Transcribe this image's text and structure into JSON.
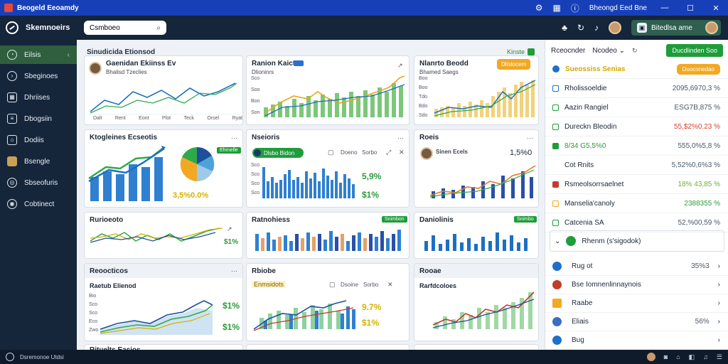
{
  "window": {
    "title": "Beogeld Eeoamdy"
  },
  "titlebar_right": {
    "label": "Bheongd Eed Bne"
  },
  "brand": {
    "name": "Skemnoeirs"
  },
  "search": {
    "value": "Csmboeo"
  },
  "profile": {
    "label": "Bitedlsa ame"
  },
  "sidebar": {
    "items": [
      {
        "label": "Eilsis",
        "icon": "gauge-icon",
        "active": true
      },
      {
        "label": "Sbeginoes",
        "icon": "chart-icon"
      },
      {
        "label": "Dhriises",
        "icon": "grid-icon"
      },
      {
        "label": "Dbogsiin",
        "icon": "document-icon"
      },
      {
        "label": "Dodiis",
        "icon": "home-icon"
      },
      {
        "label": "Bsengle",
        "icon": "book-icon"
      },
      {
        "label": "Sbseofuris",
        "icon": "people-icon"
      },
      {
        "label": "Cobtinect",
        "icon": "settings-icon"
      }
    ]
  },
  "main": {
    "header": "Sinudicida Etionsod",
    "header_action": "Kinste",
    "cards": {
      "c1": {
        "title": "Gaenidan Ekiinss Ev",
        "subtitle": "Bhalisd Tzeclies",
        "ticks": [
          "Dalt",
          "Rent",
          "Eont",
          "Plot",
          "Teck",
          "Orsel",
          "Ryat"
        ]
      },
      "c2": {
        "title": "Ranion Kaicts",
        "subtitle": "Dlioninrs",
        "y_ticks": [
          "Sco",
          "Soo",
          "Bon",
          "Son"
        ]
      },
      "c3": {
        "title": "Nlanrto Beodd",
        "subtitle": "Bhamed Saegs",
        "badge": "Dlistocem",
        "y_ticks": [
          "Boo",
          "Boo",
          "Tdo",
          "Bdo",
          "Sdo"
        ]
      },
      "c4": {
        "title": "Ktogleines Ecseotis",
        "badge": "Ehrnelle",
        "kpi": "3,5%0.0%"
      },
      "c5": {
        "title": "Nseioris",
        "pill": "Dlsbo Bidon",
        "action1": "Doeno",
        "action2": "Sorbo",
        "kpi1": "5,9%",
        "kpi2": "$1%",
        "y_ticks": [
          "Sco",
          "Sco",
          "Sco",
          "Sco"
        ]
      },
      "c6": {
        "title": "Roeis",
        "sub": "Sinen Ecels",
        "kpi": "1,5%0"
      },
      "c7": {
        "title": "Rurioeoto",
        "kpi": "$1%"
      },
      "c8": {
        "title": "Ratnohiess",
        "badge": "Snimbon"
      },
      "c9": {
        "title": "Daniolinis",
        "badge": "Snimbo"
      },
      "c10": {
        "title": "Reoocticos",
        "subtitle": "Raetub Elienod",
        "kpi1": "$1%",
        "kpi2": "$1%",
        "y_ticks": [
          "Bio",
          "Sco",
          "Sco",
          "Eco",
          "Zwo"
        ]
      },
      "c11": {
        "title": "Rbiobe",
        "subtitle": "Enmsidots",
        "action1": "Dsoine",
        "action2": "Sorbo",
        "kpi1": "9.7%",
        "kpi2": "$1%"
      },
      "c12": {
        "title": "Rooae",
        "subtitle": "Rarfdcoloes"
      },
      "bottom_row_title": "Rituelts Eacios"
    }
  },
  "right_panel": {
    "label": "Rceocnder",
    "select": "Ncodeo",
    "button": "Ducdlinden Soo",
    "rows": [
      {
        "name": "Sueossiss Senias",
        "value": "",
        "style": "orange",
        "pill": "Duoconedao"
      },
      {
        "name": "Rholissoeldie",
        "value": "2095,6970,3 %",
        "style": ""
      },
      {
        "name": "Aazin Rangiel",
        "value": "ESG7B,875 %",
        "style": ""
      },
      {
        "name": "Dureckn Bleodin",
        "value": "55,$2%0.23 %",
        "style": "red"
      },
      {
        "name": "8/34 G5,5%0",
        "value": "555,0%5,8 %",
        "style": "green"
      },
      {
        "name": "Cot Rnits",
        "value": "5,52%0,6%3 %",
        "style": ""
      },
      {
        "name": "Rsmeolsorrsaelnet",
        "value": "18% 43,85 %",
        "style": "lgreen"
      },
      {
        "name": "Manselia'canoly",
        "value": "2388355 %",
        "style": "green"
      },
      {
        "name": "Catcenia SA",
        "value": "52,%00,59 %",
        "style": ""
      }
    ],
    "box": "Rhenm (s'sigodok)",
    "list": [
      {
        "name": "Rug ot",
        "value": "35%3",
        "color": "#1e6fc9"
      },
      {
        "name": "Bse Iomnenlinnaynois",
        "value": "",
        "color": "#c23b2b"
      },
      {
        "name": "Raabe",
        "value": "",
        "color": "#f2a823"
      },
      {
        "name": "Eliais",
        "value": "56%",
        "color": "#3a6ec4"
      },
      {
        "name": "Bug",
        "value": "",
        "color": "#1e6fc9"
      }
    ]
  },
  "status": {
    "left": "Dsremonoe Utdsi"
  }
}
